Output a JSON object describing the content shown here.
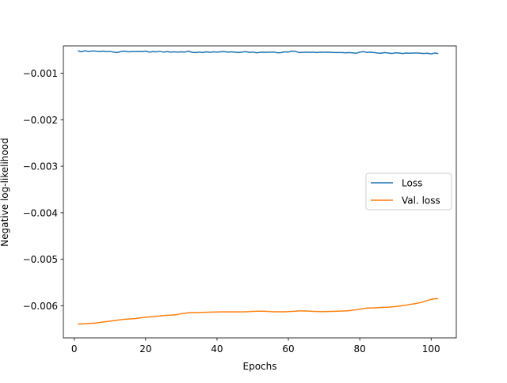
{
  "chart_data": {
    "type": "line",
    "title": "",
    "xlabel": "Epochs",
    "ylabel": "Negative log-likelihood",
    "xlim": [
      -3.05,
      107.05
    ],
    "ylim": [
      -0.00669,
      -0.000412
    ],
    "xticks": [
      0,
      20,
      40,
      60,
      80,
      100
    ],
    "xtick_labels": [
      "0",
      "20",
      "40",
      "60",
      "80",
      "100"
    ],
    "yticks": [
      -0.006,
      -0.005,
      -0.004,
      -0.003,
      -0.002,
      -0.001
    ],
    "ytick_labels": [
      "−0.006",
      "−0.005",
      "−0.004",
      "−0.003",
      "−0.002",
      "−0.001"
    ],
    "grid": false,
    "legend": {
      "placement": "center-right",
      "entries": [
        "Loss",
        "Val. loss"
      ]
    },
    "series": [
      {
        "name": "Loss",
        "color": "#1f77b4",
        "x": [
          1,
          2,
          3,
          4,
          5,
          6,
          7,
          8,
          9,
          10,
          11,
          12,
          13,
          14,
          15,
          16,
          17,
          18,
          19,
          20,
          21,
          22,
          23,
          24,
          25,
          26,
          27,
          28,
          29,
          30,
          31,
          32,
          33,
          34,
          35,
          36,
          37,
          38,
          39,
          40,
          41,
          42,
          43,
          44,
          45,
          46,
          47,
          48,
          49,
          50,
          51,
          52,
          53,
          54,
          55,
          56,
          57,
          58,
          59,
          60,
          61,
          62,
          63,
          64,
          65,
          66,
          67,
          68,
          69,
          70,
          71,
          72,
          73,
          74,
          75,
          76,
          77,
          78,
          79,
          80,
          81,
          82,
          83,
          84,
          85,
          86,
          87,
          88,
          89,
          90,
          91,
          92,
          93,
          94,
          95,
          96,
          97,
          98,
          99,
          100,
          101,
          102
        ],
        "y": [
          -0.000515,
          -0.00054,
          -0.000515,
          -0.000535,
          -0.00052,
          -0.000525,
          -0.000535,
          -0.000525,
          -0.000535,
          -0.00053,
          -0.000545,
          -0.000555,
          -0.000535,
          -0.000525,
          -0.00054,
          -0.000535,
          -0.000535,
          -0.00053,
          -0.000535,
          -0.000525,
          -0.000545,
          -0.000535,
          -0.00054,
          -0.00053,
          -0.000545,
          -0.000535,
          -0.000545,
          -0.00054,
          -0.000545,
          -0.00054,
          -0.000545,
          -0.000525,
          -0.00055,
          -0.000555,
          -0.000545,
          -0.000555,
          -0.00054,
          -0.00055,
          -0.00054,
          -0.000545,
          -0.00054,
          -0.000535,
          -0.000545,
          -0.00054,
          -0.000545,
          -0.000555,
          -0.000545,
          -0.000535,
          -0.00055,
          -0.000545,
          -0.00056,
          -0.00055,
          -0.000545,
          -0.00055,
          -0.000545,
          -0.000545,
          -0.00056,
          -0.000555,
          -0.00054,
          -0.000545,
          -0.000525,
          -0.00053,
          -0.000555,
          -0.00055,
          -0.000545,
          -0.00055,
          -0.000545,
          -0.000555,
          -0.000545,
          -0.00055,
          -0.000545,
          -0.00055,
          -0.000555,
          -0.000555,
          -0.000555,
          -0.00056,
          -0.000555,
          -0.00056,
          -0.00057,
          -0.000545,
          -0.000535,
          -0.00055,
          -0.000545,
          -0.000555,
          -0.000565,
          -0.00057,
          -0.000555,
          -0.000565,
          -0.000575,
          -0.00056,
          -0.000565,
          -0.000575,
          -0.000565,
          -0.00057,
          -0.000565,
          -0.000565,
          -0.00057,
          -0.000575,
          -0.00057,
          -0.000585,
          -0.000565,
          -0.000575
        ]
      },
      {
        "name": "Val. loss",
        "color": "#ff7f0e",
        "x": [
          1,
          2,
          3,
          4,
          5,
          6,
          7,
          8,
          9,
          10,
          11,
          12,
          13,
          14,
          15,
          16,
          17,
          18,
          19,
          20,
          21,
          22,
          23,
          24,
          25,
          26,
          27,
          28,
          29,
          30,
          31,
          32,
          33,
          34,
          35,
          36,
          37,
          38,
          39,
          40,
          41,
          42,
          43,
          44,
          45,
          46,
          47,
          48,
          49,
          50,
          51,
          52,
          53,
          54,
          55,
          56,
          57,
          58,
          59,
          60,
          61,
          62,
          63,
          64,
          65,
          66,
          67,
          68,
          69,
          70,
          71,
          72,
          73,
          74,
          75,
          76,
          77,
          78,
          79,
          80,
          81,
          82,
          83,
          84,
          85,
          86,
          87,
          88,
          89,
          90,
          91,
          92,
          93,
          94,
          95,
          96,
          97,
          98,
          99,
          100,
          101,
          102
        ],
        "y": [
          -0.00639,
          -0.00639,
          -0.006385,
          -0.00638,
          -0.006375,
          -0.00637,
          -0.00636,
          -0.00635,
          -0.00634,
          -0.00633,
          -0.00632,
          -0.00631,
          -0.0063,
          -0.00629,
          -0.006285,
          -0.00628,
          -0.006275,
          -0.006265,
          -0.006255,
          -0.006245,
          -0.00624,
          -0.006235,
          -0.006225,
          -0.00622,
          -0.00621,
          -0.006205,
          -0.0062,
          -0.006195,
          -0.006185,
          -0.00617,
          -0.00616,
          -0.00615,
          -0.006148,
          -0.006145,
          -0.006145,
          -0.006142,
          -0.00614,
          -0.006138,
          -0.006135,
          -0.006133,
          -0.00613,
          -0.00613,
          -0.00613,
          -0.00613,
          -0.00613,
          -0.00613,
          -0.00613,
          -0.006128,
          -0.006125,
          -0.00612,
          -0.006118,
          -0.006115,
          -0.006115,
          -0.00612,
          -0.006125,
          -0.006128,
          -0.006128,
          -0.006128,
          -0.006128,
          -0.006125,
          -0.00612,
          -0.006115,
          -0.00611,
          -0.00611,
          -0.006112,
          -0.006115,
          -0.00612,
          -0.006122,
          -0.006125,
          -0.006125,
          -0.006123,
          -0.00612,
          -0.006118,
          -0.006115,
          -0.006112,
          -0.00611,
          -0.006105,
          -0.006095,
          -0.006085,
          -0.006073,
          -0.00606,
          -0.00605,
          -0.006045,
          -0.006045,
          -0.00604,
          -0.006035,
          -0.006033,
          -0.00603,
          -0.006022,
          -0.006015,
          -0.006005,
          -0.005995,
          -0.005985,
          -0.005972,
          -0.00596,
          -0.005945,
          -0.00593,
          -0.00591,
          -0.005885,
          -0.005862,
          -0.005848,
          -0.005845
        ]
      }
    ]
  }
}
